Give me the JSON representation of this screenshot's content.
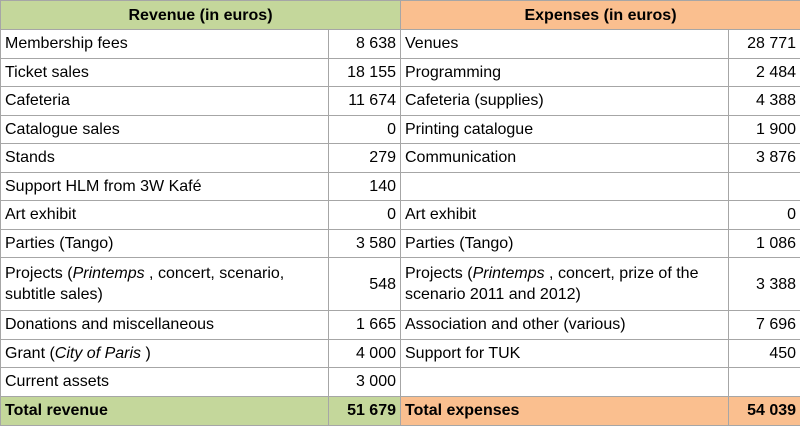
{
  "revenue": {
    "header": "Revenue (in euros)",
    "total": [
      "Total revenue",
      "51 679"
    ]
  },
  "expenses": {
    "header": "Expenses (in euros)",
    "total": [
      "Total expenses",
      "54 039"
    ]
  },
  "rows": [
    {
      "revenue": [
        "Membership fees",
        "8 638"
      ],
      "expenses": [
        "Venues",
        "28 771"
      ]
    },
    {
      "revenue": [
        "Ticket sales",
        "18 155"
      ],
      "expenses": [
        "Programming",
        "2 484"
      ]
    },
    {
      "revenue": [
        "Cafeteria",
        "11 674"
      ],
      "expenses": [
        "Cafeteria (supplies)",
        "4 388"
      ]
    },
    {
      "revenue": [
        "Catalogue sales",
        "0"
      ],
      "expenses": [
        "Printing catalogue",
        "1 900"
      ]
    },
    {
      "revenue": [
        "Stands",
        "279"
      ],
      "expenses": [
        "Communication",
        "3 876"
      ]
    },
    {
      "revenue": [
        "Support HLM from 3W Kafé",
        "140"
      ],
      "expenses": null
    },
    {
      "revenue": [
        "Art exhibit",
        "0"
      ],
      "expenses": [
        "Art exhibit",
        "0"
      ]
    },
    {
      "revenue": [
        "Parties (Tango)",
        "3 580"
      ],
      "expenses": [
        "Parties (Tango)",
        "1 086"
      ]
    },
    {
      "revenue": [
        [
          {
            "text": "Projects ("
          },
          {
            "text": "Printemps",
            "italic": true
          },
          {
            "text": " , concert, scenario, subtitle sales)"
          }
        ],
        "548"
      ],
      "expenses": [
        [
          {
            "text": "Projects ("
          },
          {
            "text": "Printemps",
            "italic": true
          },
          {
            "text": " , concert, prize of the scenario 2011 and 2012)"
          }
        ],
        "3 388"
      ]
    },
    {
      "revenue": [
        "Donations and miscellaneous",
        "1 665"
      ],
      "expenses": [
        "Association and other (various)",
        "7 696"
      ]
    },
    {
      "revenue": [
        [
          {
            "text": "Grant ("
          },
          {
            "text": "City of Paris",
            "italic": true
          },
          {
            "text": " )"
          }
        ],
        "4 000"
      ],
      "expenses": [
        "Support for TUK",
        "450"
      ]
    },
    {
      "revenue": [
        "Current assets",
        "3 000"
      ],
      "expenses": null
    }
  ]
}
